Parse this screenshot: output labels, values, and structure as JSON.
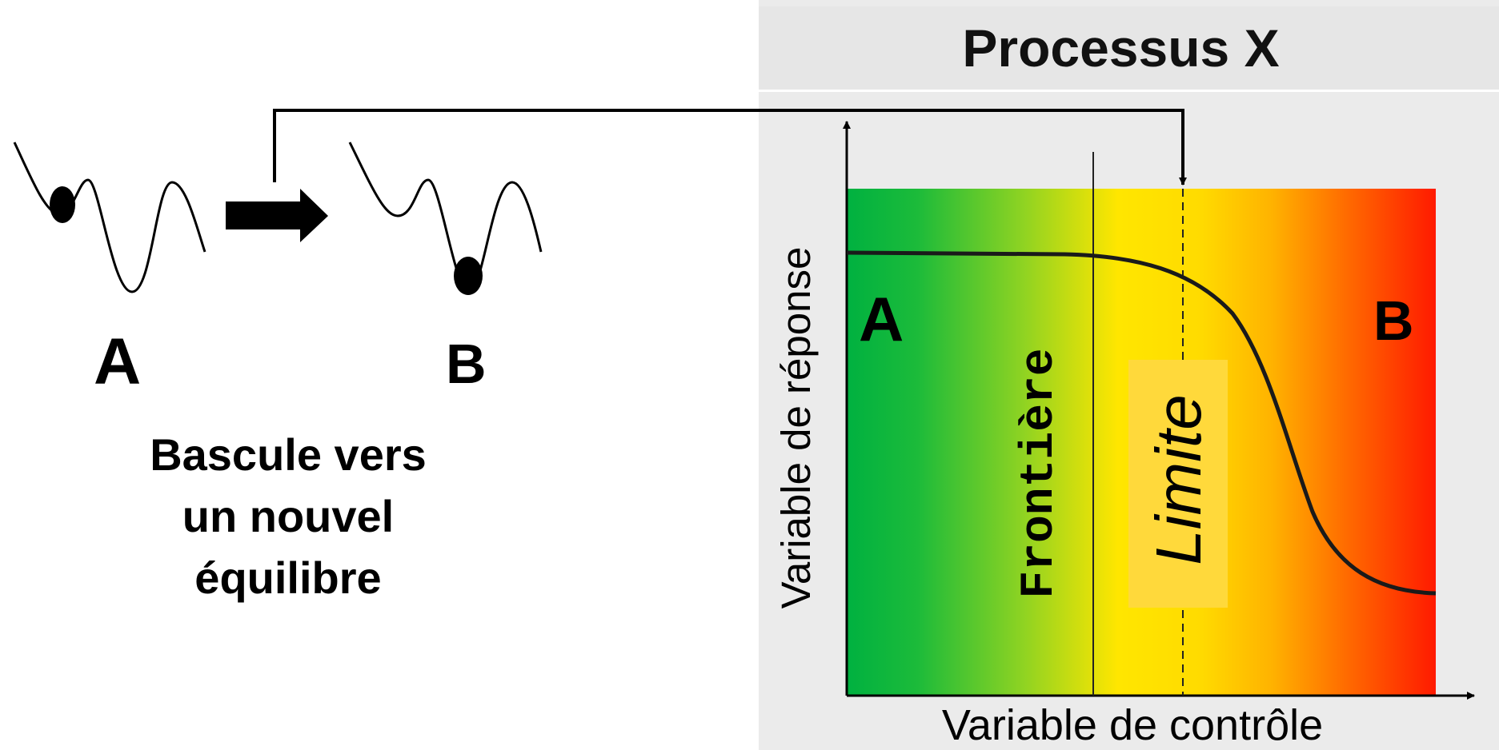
{
  "left": {
    "state_a_label": "A",
    "state_b_label": "B",
    "caption_lines": [
      "Bascule vers",
      "un nouvel",
      "équilibre"
    ]
  },
  "panel": {
    "title": "Processus X",
    "x_axis_label": "Variable de contrôle",
    "y_axis_label": "Variable de réponse",
    "zone_a_label": "A",
    "zone_b_label": "B",
    "boundary_label": "Frontière",
    "limit_label": "Limite"
  },
  "colors": {
    "gradient_green": "#00b140",
    "gradient_yellow": "#ffe600",
    "gradient_orange": "#ff8c00",
    "gradient_red": "#ff1a00",
    "limit_box": "#ffd93b",
    "panel_bg": "#ebebeb"
  }
}
